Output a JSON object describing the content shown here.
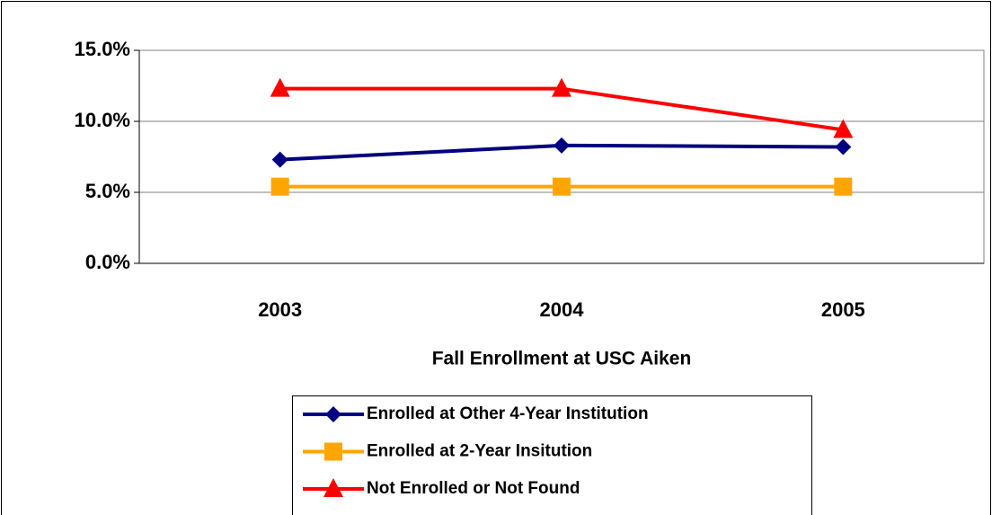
{
  "chart_data": {
    "type": "line",
    "x_label": "Fall Enrollment at USC Aiken",
    "categories": [
      "2003",
      "2004",
      "2005"
    ],
    "series": [
      {
        "name": "Enrolled at Other 4-Year Institution",
        "color": "#000080",
        "marker": "diamond",
        "values": [
          7.3,
          8.3,
          8.2
        ]
      },
      {
        "name": "Enrolled at 2-Year Insitution",
        "color": "#ffa500",
        "marker": "square",
        "values": [
          5.4,
          5.4,
          5.4
        ]
      },
      {
        "name": "Not Enrolled or Not Found",
        "color": "#ff0000",
        "marker": "triangle",
        "values": [
          12.3,
          12.3,
          9.4
        ]
      }
    ],
    "ylim": [
      0,
      15
    ],
    "yticks": [
      {
        "value": 0,
        "label": "0.0%"
      },
      {
        "value": 5,
        "label": "5.0%"
      },
      {
        "value": 10,
        "label": "10.0%"
      },
      {
        "value": 15,
        "label": "15.0%"
      }
    ],
    "grid": true,
    "legend": "bottom"
  }
}
